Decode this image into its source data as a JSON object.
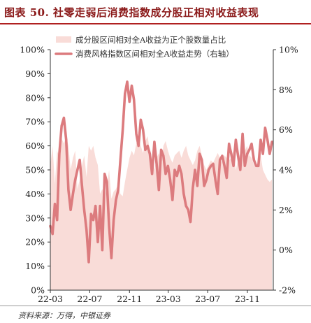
{
  "figure": {
    "title": "图表 50. 社零走弱后消费指数成分股正相对收益表现",
    "source": "资料来源：万得，中银证券"
  },
  "colors": {
    "area": "#f9dcd8",
    "line": "#dc7b7e",
    "title": "#8b1a1a",
    "rule": "#b02020"
  },
  "chart_data": {
    "type": "area+line",
    "legend_position": "top-center",
    "grid": false,
    "x_tick_labels": [
      "22-03",
      "22-07",
      "22-11",
      "23-03",
      "23-07",
      "23-11"
    ],
    "y_left": {
      "ticks": [
        "0%",
        "10%",
        "20%",
        "30%",
        "40%",
        "50%",
        "60%",
        "70%",
        "80%",
        "90%",
        "100%"
      ],
      "ylim": [
        0,
        100
      ]
    },
    "y_right": {
      "ticks": [
        "-2%",
        "0%",
        "2%",
        "4%",
        "6%",
        "8%",
        "10%"
      ],
      "ylim": [
        -2,
        10
      ]
    },
    "series": [
      {
        "name": "成分股区间相对全A收益为正个股数量占比",
        "type": "area",
        "axis": "left",
        "x": [
          "2022-03-01",
          "2022-03-08",
          "2022-03-15",
          "2022-03-22",
          "2022-03-29",
          "2022-04-05",
          "2022-04-12",
          "2022-04-19",
          "2022-04-26",
          "2022-05-03",
          "2022-05-10",
          "2022-05-17",
          "2022-05-24",
          "2022-05-31",
          "2022-06-07",
          "2022-06-14",
          "2022-06-21",
          "2022-06-28",
          "2022-07-05",
          "2022-07-12",
          "2022-07-19",
          "2022-07-26",
          "2022-08-02",
          "2022-08-09",
          "2022-08-16",
          "2022-08-23",
          "2022-08-30",
          "2022-09-06",
          "2022-09-13",
          "2022-09-20",
          "2022-09-27",
          "2022-10-04",
          "2022-10-11",
          "2022-10-18",
          "2022-10-25",
          "2022-11-01",
          "2022-11-08",
          "2022-11-15",
          "2022-11-22",
          "2022-11-29",
          "2022-12-06",
          "2022-12-13",
          "2022-12-20",
          "2022-12-27",
          "2023-01-03",
          "2023-01-10",
          "2023-01-17",
          "2023-01-24",
          "2023-01-31",
          "2023-02-07",
          "2023-02-14",
          "2023-02-21",
          "2023-02-28",
          "2023-03-07",
          "2023-03-14",
          "2023-03-21",
          "2023-03-28",
          "2023-04-04",
          "2023-04-11",
          "2023-04-18",
          "2023-04-25",
          "2023-05-02",
          "2023-05-09",
          "2023-05-16",
          "2023-05-23",
          "2023-05-30",
          "2023-06-06",
          "2023-06-13",
          "2023-06-20",
          "2023-06-27",
          "2023-07-04",
          "2023-07-11",
          "2023-07-18",
          "2023-07-25",
          "2023-08-01",
          "2023-08-08",
          "2023-08-15",
          "2023-08-22",
          "2023-08-29",
          "2023-09-05",
          "2023-09-12",
          "2023-09-19",
          "2023-09-26",
          "2023-10-03",
          "2023-10-10",
          "2023-10-17",
          "2023-10-24",
          "2023-10-31",
          "2023-11-07",
          "2023-11-14",
          "2023-11-21",
          "2023-11-28",
          "2023-12-05",
          "2023-12-12",
          "2023-12-19",
          "2023-12-26",
          "2024-01-02",
          "2024-01-09",
          "2024-01-16"
        ],
        "values": [
          52,
          60,
          44,
          58,
          55,
          63,
          61,
          64,
          60,
          50,
          55,
          58,
          42,
          46,
          52,
          56,
          47,
          60,
          58,
          60,
          55,
          52,
          40,
          42,
          39,
          43,
          50,
          38,
          41,
          42,
          44,
          40,
          39,
          45,
          50,
          55,
          58,
          56,
          61,
          63,
          60,
          57,
          62,
          64,
          58,
          54,
          50,
          55,
          57,
          52,
          60,
          62,
          58,
          55,
          53,
          56,
          57,
          58,
          55,
          58,
          60,
          56,
          54,
          52,
          54,
          58,
          60,
          56,
          52,
          50,
          52,
          54,
          53,
          55,
          57,
          55,
          53,
          56,
          55,
          54,
          55,
          58,
          50,
          54,
          57,
          56,
          58,
          60,
          56,
          55,
          52,
          51,
          54,
          56,
          50,
          48,
          46,
          45,
          46
        ]
      },
      {
        "name": "消费风格指数区间相对全A收益走势（右轴）",
        "type": "line",
        "axis": "right",
        "x": [
          "2022-03-01",
          "2022-03-08",
          "2022-03-15",
          "2022-03-22",
          "2022-03-29",
          "2022-04-05",
          "2022-04-12",
          "2022-04-19",
          "2022-04-26",
          "2022-05-03",
          "2022-05-10",
          "2022-05-17",
          "2022-05-24",
          "2022-05-31",
          "2022-06-07",
          "2022-06-14",
          "2022-06-21",
          "2022-06-28",
          "2022-07-05",
          "2022-07-12",
          "2022-07-19",
          "2022-07-26",
          "2022-08-02",
          "2022-08-09",
          "2022-08-16",
          "2022-08-23",
          "2022-08-30",
          "2022-09-06",
          "2022-09-13",
          "2022-09-20",
          "2022-09-27",
          "2022-10-04",
          "2022-10-11",
          "2022-10-18",
          "2022-10-25",
          "2022-11-01",
          "2022-11-08",
          "2022-11-15",
          "2022-11-22",
          "2022-11-29",
          "2022-12-06",
          "2022-12-13",
          "2022-12-20",
          "2022-12-27",
          "2023-01-03",
          "2023-01-10",
          "2023-01-17",
          "2023-01-24",
          "2023-01-31",
          "2023-02-07",
          "2023-02-14",
          "2023-02-21",
          "2023-02-28",
          "2023-03-07",
          "2023-03-14",
          "2023-03-21",
          "2023-03-28",
          "2023-04-04",
          "2023-04-11",
          "2023-04-18",
          "2023-04-25",
          "2023-05-02",
          "2023-05-09",
          "2023-05-16",
          "2023-05-23",
          "2023-05-30",
          "2023-06-06",
          "2023-06-13",
          "2023-06-20",
          "2023-06-27",
          "2023-07-04",
          "2023-07-11",
          "2023-07-18",
          "2023-07-25",
          "2023-08-01",
          "2023-08-08",
          "2023-08-15",
          "2023-08-22",
          "2023-08-29",
          "2023-09-05",
          "2023-09-12",
          "2023-09-19",
          "2023-09-26",
          "2023-10-03",
          "2023-10-10",
          "2023-10-17",
          "2023-10-24",
          "2023-10-31",
          "2023-11-07",
          "2023-11-14",
          "2023-11-21",
          "2023-11-28",
          "2023-12-05",
          "2023-12-12",
          "2023-12-19",
          "2023-12-26",
          "2024-01-02",
          "2024-01-09",
          "2024-01-16"
        ],
        "values": [
          1.2,
          0.8,
          2.3,
          1.5,
          4.8,
          6.2,
          6.6,
          5.5,
          3.0,
          2.0,
          2.8,
          3.5,
          4.0,
          4.5,
          3.2,
          2.0,
          1.0,
          -0.6,
          1.8,
          1.5,
          2.2,
          0.4,
          2.2,
          0.0,
          3.8,
          3.4,
          1.2,
          -0.4,
          1.5,
          2.5,
          3.0,
          4.5,
          6.0,
          7.8,
          8.4,
          7.4,
          8.2,
          7.5,
          5.8,
          5.2,
          6.5,
          6.0,
          5.0,
          5.2,
          4.8,
          3.8,
          5.4,
          4.3,
          3.0,
          5.0,
          4.7,
          3.8,
          4.2,
          3.5,
          2.5,
          4.0,
          3.7,
          4.2,
          3.8,
          2.8,
          2.2,
          2.0,
          1.4,
          3.1,
          4.0,
          3.2,
          4.8,
          4.5,
          3.2,
          3.5,
          4.0,
          4.2,
          4.3,
          3.5,
          2.8,
          4.5,
          4.7,
          4.2,
          3.6,
          5.3,
          4.8,
          4.2,
          5.5,
          4.7,
          4.0,
          5.8,
          4.2,
          4.8,
          5.0,
          5.3,
          4.5,
          4.2,
          4.2,
          5.5,
          4.8,
          6.1,
          5.5,
          4.8,
          5.4
        ]
      }
    ]
  }
}
